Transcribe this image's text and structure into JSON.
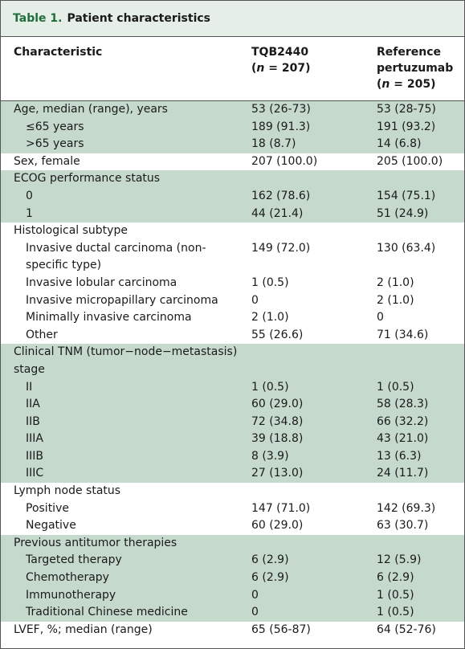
{
  "title": {
    "label": "Table 1.",
    "text": "Patient characteristics"
  },
  "table": {
    "header": [
      [
        "Characteristic"
      ],
      [
        "TQB2440",
        "(n = 207)"
      ],
      [
        "Reference",
        "pertuzumab",
        "(n = 205)"
      ]
    ],
    "groups": [
      {
        "rows": [
          [
            "Age, median (range), years",
            "53 (26-73)",
            "53 (28-75)"
          ],
          [
            "≤65 years",
            "189 (91.3)",
            "191 (93.2)"
          ],
          [
            ">65 years",
            "18 (8.7)",
            "14 (6.8)"
          ]
        ]
      },
      {
        "rows": [
          [
            "Sex, female",
            "207 (100.0)",
            "205 (100.0)"
          ]
        ]
      },
      {
        "rows": [
          [
            "ECOG performance status"
          ],
          [
            "0",
            "162 (78.6)",
            "154 (75.1)"
          ],
          [
            "1",
            "44 (21.4)",
            "51 (24.9)"
          ]
        ]
      },
      {
        "rows": [
          [
            "Histological subtype"
          ],
          [
            "Invasive ductal carcinoma (non-specific type)",
            "149 (72.0)",
            "130 (63.4)"
          ],
          [
            "Invasive lobular carcinoma",
            "1 (0.5)",
            "2 (1.0)"
          ],
          [
            "Invasive micropapillary carcinoma",
            "0",
            "2 (1.0)"
          ],
          [
            "Minimally invasive carcinoma",
            "2 (1.0)",
            "0"
          ],
          [
            "Other",
            "55 (26.6)",
            "71 (34.6)"
          ]
        ]
      },
      {
        "rows": [
          [
            "Clinical TNM (tumor−node−metastasis) stage"
          ],
          [
            "II",
            "1 (0.5)",
            "1 (0.5)"
          ],
          [
            "IIA",
            "60 (29.0)",
            "58 (28.3)"
          ],
          [
            "IIB",
            "72 (34.8)",
            "66 (32.2)"
          ],
          [
            "IIIA",
            "39 (18.8)",
            "43 (21.0)"
          ],
          [
            "IIIB",
            "8 (3.9)",
            "13 (6.3)"
          ],
          [
            "IIIC",
            "27 (13.0)",
            "24 (11.7)"
          ]
        ]
      },
      {
        "rows": [
          [
            "Lymph node status"
          ],
          [
            "Positive",
            "147 (71.0)",
            "142 (69.3)"
          ],
          [
            "Negative",
            "60 (29.0)",
            "63 (30.7)"
          ]
        ]
      },
      {
        "rows": [
          [
            "Previous antitumor therapies"
          ],
          [
            "Targeted therapy",
            "6 (2.9)",
            "12 (5.9)"
          ],
          [
            "Chemotherapy",
            "6 (2.9)",
            "6 (2.9)"
          ],
          [
            "Immunotherapy",
            "0",
            "1 (0.5)"
          ],
          [
            "Traditional Chinese medicine",
            "0",
            "1 (0.5)"
          ]
        ]
      },
      {
        "rows": [
          [
            "LVEF, %; median (range)",
            "65 (56-87)",
            "64 (52-76)"
          ]
        ]
      }
    ]
  }
}
